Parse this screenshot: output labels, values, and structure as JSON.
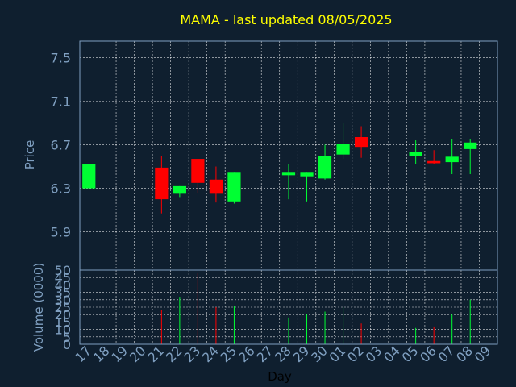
{
  "chart_data": {
    "type": "candlestick",
    "title": "MAMA - last updated 08/05/2025",
    "xlabel": "Day",
    "ylabel_price": "Price",
    "ylabel_volume": "Volume (0000)",
    "x_ticks": [
      "17",
      "18",
      "19",
      "20",
      "21",
      "22",
      "23",
      "24",
      "25",
      "26",
      "27",
      "28",
      "29",
      "30",
      "01",
      "02",
      "03",
      "04",
      "05",
      "06",
      "07",
      "08",
      "09"
    ],
    "price_ticks": [
      "5.9",
      "6.3",
      "6.7",
      "7.1",
      "7.5"
    ],
    "price_ylim": [
      5.55,
      7.65
    ],
    "volume_ticks": [
      "0",
      "5",
      "10",
      "15",
      "20",
      "25",
      "30",
      "35",
      "40",
      "45",
      "50"
    ],
    "volume_ylim": [
      0,
      50
    ],
    "grid": true,
    "colors": {
      "up": "#00ff33",
      "down": "#ff0000",
      "grid": "#ffffff",
      "frame": "#7f9fc0",
      "title": "#ffff00",
      "background": "#0f1f2f"
    },
    "candles": [
      {
        "x": 0,
        "open": 6.3,
        "close": 6.52,
        "high": 6.52,
        "low": 6.3,
        "volume": 0
      },
      {
        "x": 4,
        "open": 6.49,
        "close": 6.2,
        "high": 6.6,
        "low": 6.07,
        "volume": 23
      },
      {
        "x": 5,
        "open": 6.25,
        "close": 6.32,
        "high": 6.32,
        "low": 6.22,
        "volume": 32
      },
      {
        "x": 6,
        "open": 6.57,
        "close": 6.35,
        "high": 6.57,
        "low": 6.26,
        "volume": 48
      },
      {
        "x": 7,
        "open": 6.38,
        "close": 6.25,
        "high": 6.5,
        "low": 6.17,
        "volume": 25
      },
      {
        "x": 8,
        "open": 6.18,
        "close": 6.45,
        "high": 6.45,
        "low": 6.16,
        "volume": 26
      },
      {
        "x": 11,
        "open": 6.42,
        "close": 6.45,
        "high": 6.52,
        "low": 6.2,
        "volume": 18
      },
      {
        "x": 12,
        "open": 6.41,
        "close": 6.45,
        "high": 6.45,
        "low": 6.18,
        "volume": 20
      },
      {
        "x": 13,
        "open": 6.39,
        "close": 6.6,
        "high": 6.7,
        "low": 6.38,
        "volume": 22
      },
      {
        "x": 14,
        "open": 6.61,
        "close": 6.71,
        "high": 6.9,
        "low": 6.57,
        "volume": 25
      },
      {
        "x": 15,
        "open": 6.77,
        "close": 6.68,
        "high": 6.87,
        "low": 6.58,
        "volume": 14
      },
      {
        "x": 18,
        "open": 6.6,
        "close": 6.63,
        "high": 6.74,
        "low": 6.52,
        "volume": 11
      },
      {
        "x": 19,
        "open": 6.55,
        "close": 6.53,
        "high": 6.65,
        "low": 6.52,
        "volume": 12
      },
      {
        "x": 20,
        "open": 6.54,
        "close": 6.59,
        "high": 6.75,
        "low": 6.43,
        "volume": 20
      },
      {
        "x": 21,
        "open": 6.66,
        "close": 6.72,
        "high": 6.75,
        "low": 6.43,
        "volume": 30
      }
    ]
  }
}
